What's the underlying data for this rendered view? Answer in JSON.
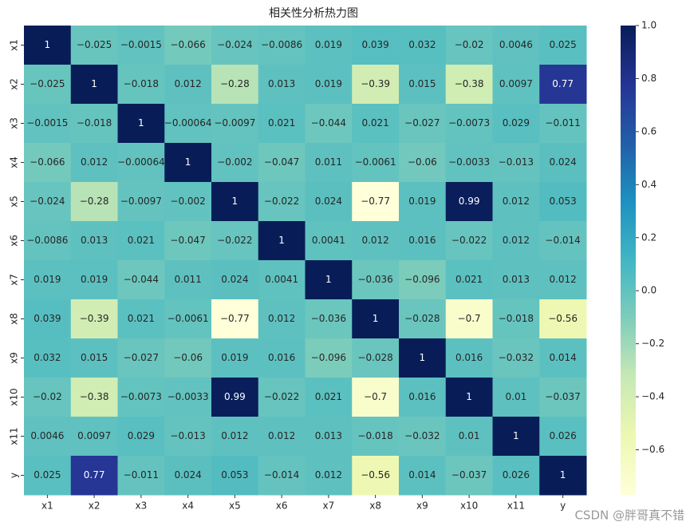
{
  "chart_data": {
    "type": "heatmap",
    "title": "相关性分析热力图",
    "x_categories": [
      "x1",
      "x2",
      "x3",
      "x4",
      "x5",
      "x6",
      "x7",
      "x8",
      "x9",
      "x10",
      "x11",
      "y"
    ],
    "y_categories": [
      "x1",
      "x2",
      "x3",
      "x4",
      "x5",
      "x6",
      "x7",
      "x8",
      "x9",
      "x10",
      "x11",
      "y"
    ],
    "values": [
      [
        1,
        -0.025,
        -0.0015,
        -0.066,
        -0.024,
        -0.0086,
        0.019,
        0.039,
        0.032,
        -0.02,
        0.0046,
        0.025
      ],
      [
        -0.025,
        1,
        -0.018,
        0.012,
        -0.28,
        0.013,
        0.019,
        -0.39,
        0.015,
        -0.38,
        0.0097,
        0.77
      ],
      [
        -0.0015,
        -0.018,
        1,
        -0.00064,
        -0.0097,
        0.021,
        -0.044,
        0.021,
        -0.027,
        -0.0073,
        0.029,
        -0.011
      ],
      [
        -0.066,
        0.012,
        -0.00064,
        1,
        -0.002,
        -0.047,
        0.011,
        -0.0061,
        -0.06,
        -0.0033,
        -0.013,
        0.024
      ],
      [
        -0.024,
        -0.28,
        -0.0097,
        -0.002,
        1,
        -0.022,
        0.024,
        -0.77,
        0.019,
        0.99,
        0.012,
        0.053
      ],
      [
        -0.0086,
        0.013,
        0.021,
        -0.047,
        -0.022,
        1,
        0.0041,
        0.012,
        0.016,
        -0.022,
        0.012,
        -0.014
      ],
      [
        0.019,
        0.019,
        -0.044,
        0.011,
        0.024,
        0.0041,
        1,
        -0.036,
        -0.096,
        0.021,
        0.013,
        0.012
      ],
      [
        0.039,
        -0.39,
        0.021,
        -0.0061,
        -0.77,
        0.012,
        -0.036,
        1,
        -0.028,
        -0.7,
        -0.018,
        -0.56
      ],
      [
        0.032,
        0.015,
        -0.027,
        -0.06,
        0.019,
        0.016,
        -0.096,
        -0.028,
        1,
        0.016,
        -0.032,
        0.014
      ],
      [
        -0.02,
        -0.38,
        -0.0073,
        -0.0033,
        0.99,
        -0.022,
        0.021,
        -0.7,
        0.016,
        1,
        0.01,
        -0.037
      ],
      [
        0.0046,
        0.0097,
        0.029,
        -0.013,
        0.012,
        0.012,
        0.013,
        -0.018,
        -0.032,
        0.01,
        1,
        0.026
      ],
      [
        0.025,
        0.77,
        -0.011,
        0.024,
        0.053,
        -0.014,
        0.012,
        -0.56,
        0.014,
        -0.037,
        0.026,
        1
      ]
    ],
    "value_labels": [
      [
        "1",
        "−0.025",
        "−0.0015",
        "−0.066",
        "−0.024",
        "−0.0086",
        "0.019",
        "0.039",
        "0.032",
        "−0.02",
        "0.0046",
        "0.025"
      ],
      [
        "−0.025",
        "1",
        "−0.018",
        "0.012",
        "−0.28",
        "0.013",
        "0.019",
        "−0.39",
        "0.015",
        "−0.38",
        "0.0097",
        "0.77"
      ],
      [
        "−0.0015",
        "−0.018",
        "1",
        "−0.00064",
        "−0.0097",
        "0.021",
        "−0.044",
        "0.021",
        "−0.027",
        "−0.0073",
        "0.029",
        "−0.011"
      ],
      [
        "−0.066",
        "0.012",
        "−0.00064",
        "1",
        "−0.002",
        "−0.047",
        "0.011",
        "−0.0061",
        "−0.06",
        "−0.0033",
        "−0.013",
        "0.024"
      ],
      [
        "−0.024",
        "−0.28",
        "−0.0097",
        "−0.002",
        "1",
        "−0.022",
        "0.024",
        "−0.77",
        "0.019",
        "0.99",
        "0.012",
        "0.053"
      ],
      [
        "−0.0086",
        "0.013",
        "0.021",
        "−0.047",
        "−0.022",
        "1",
        "0.0041",
        "0.012",
        "0.016",
        "−0.022",
        "0.012",
        "−0.014"
      ],
      [
        "0.019",
        "0.019",
        "−0.044",
        "0.011",
        "0.024",
        "0.0041",
        "1",
        "−0.036",
        "−0.096",
        "0.021",
        "0.013",
        "0.012"
      ],
      [
        "0.039",
        "−0.39",
        "0.021",
        "−0.0061",
        "−0.77",
        "0.012",
        "−0.036",
        "1",
        "−0.028",
        "−0.7",
        "−0.018",
        "−0.56"
      ],
      [
        "0.032",
        "0.015",
        "−0.027",
        "−0.06",
        "0.019",
        "0.016",
        "−0.096",
        "−0.028",
        "1",
        "0.016",
        "−0.032",
        "0.014"
      ],
      [
        "−0.02",
        "−0.38",
        "−0.0073",
        "−0.0033",
        "0.99",
        "−0.022",
        "0.021",
        "−0.7",
        "0.016",
        "1",
        "0.01",
        "−0.037"
      ],
      [
        "0.0046",
        "0.0097",
        "0.029",
        "−0.013",
        "0.012",
        "0.012",
        "0.013",
        "−0.018",
        "−0.032",
        "0.01",
        "1",
        "0.026"
      ],
      [
        "0.025",
        "0.77",
        "−0.011",
        "0.024",
        "0.053",
        "−0.014",
        "0.012",
        "−0.56",
        "0.014",
        "−0.037",
        "0.026",
        "1"
      ]
    ],
    "colormap": [
      "#ffffd9",
      "#edf8b1",
      "#c7e9b4",
      "#7fcdbb",
      "#41b6c4",
      "#1d91c0",
      "#225ea8",
      "#253494",
      "#081d58"
    ],
    "clim": [
      -0.77,
      1
    ],
    "cticks": [
      {
        "value": 1,
        "label": "1.0"
      },
      0.8,
      0.6,
      0.4,
      0.2,
      {
        "value": 0,
        "label": "0.0"
      },
      {
        "value": -0.2,
        "label": "−0.2"
      },
      {
        "value": -0.4,
        "label": "−0.4"
      },
      {
        "value": -0.6,
        "label": "−0.6"
      }
    ],
    "watermark": "CSDN @胖哥真不错"
  }
}
